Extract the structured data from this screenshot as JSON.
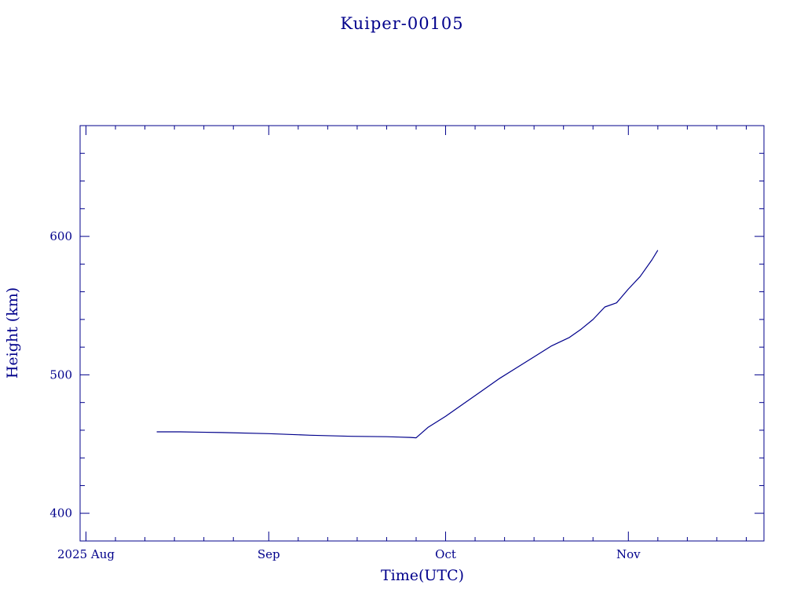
{
  "chart_data": {
    "type": "line",
    "title": "Kuiper-00105",
    "xlabel": "Time(UTC)",
    "ylabel": "Height (km)",
    "xlim": [
      "2025-07-31",
      "2025-11-24"
    ],
    "ylim": [
      380,
      680
    ],
    "x_ticks": [
      {
        "date": "2025-08-01",
        "label": "2025 Aug"
      },
      {
        "date": "2025-09-01",
        "label": "Sep"
      },
      {
        "date": "2025-10-01",
        "label": "Oct"
      },
      {
        "date": "2025-11-01",
        "label": "Nov"
      }
    ],
    "y_ticks": [
      {
        "value": 400,
        "label": "400"
      },
      {
        "value": 500,
        "label": "500"
      },
      {
        "value": 600,
        "label": "600"
      }
    ],
    "grid": false,
    "color": "#00008b",
    "series": [
      {
        "x": [
          "2025-08-13",
          "2025-08-17",
          "2025-08-24",
          "2025-09-01",
          "2025-09-08",
          "2025-09-15",
          "2025-09-21",
          "2025-09-25",
          "2025-09-26",
          "2025-09-28",
          "2025-10-01",
          "2025-10-04",
          "2025-10-07",
          "2025-10-10",
          "2025-10-13",
          "2025-10-16",
          "2025-10-19",
          "2025-10-22",
          "2025-10-24",
          "2025-10-26",
          "2025-10-28",
          "2025-10-30",
          "2025-11-01",
          "2025-11-03",
          "2025-11-05",
          "2025-11-06"
        ],
        "y": [
          458.8,
          458.8,
          458.3,
          457.5,
          456.4,
          455.6,
          455.3,
          454.8,
          454.5,
          462,
          470,
          479,
          488,
          497,
          505,
          513,
          521,
          527,
          533,
          540,
          549,
          552,
          562,
          571,
          583,
          590
        ]
      }
    ]
  }
}
